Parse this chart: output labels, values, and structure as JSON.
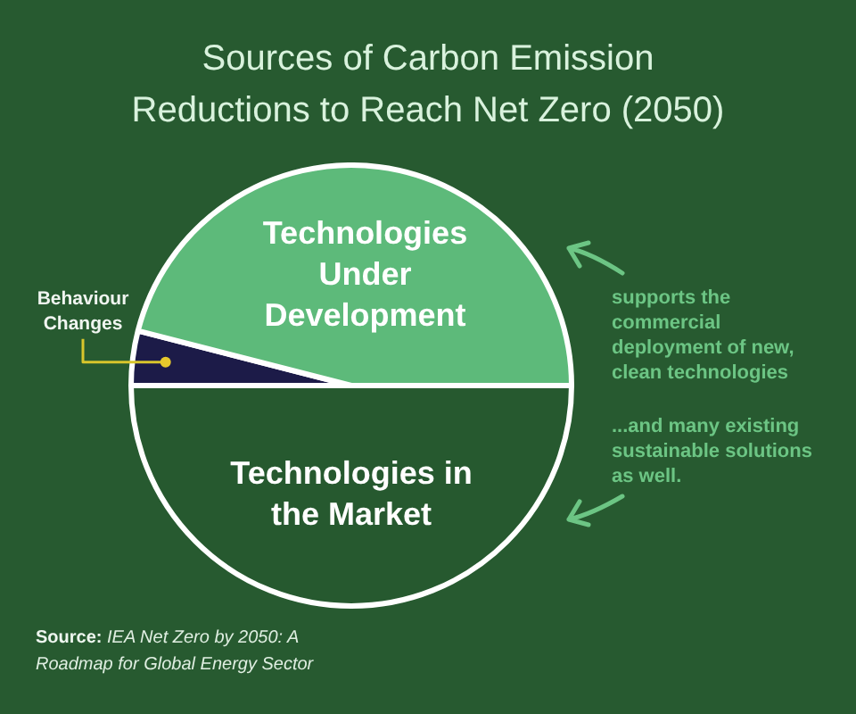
{
  "chart_data": {
    "type": "pie",
    "title": "Sources of Carbon Emission Reductions to Reach Net Zero (2050)",
    "categories": [
      "Technologies in the Market",
      "Behaviour Changes",
      "Technologies Under Development"
    ],
    "values": [
      50,
      4,
      46
    ],
    "colors": [
      "#26592f",
      "#1c1b48",
      "#5dba7a"
    ],
    "annotations": [
      "supports the commercial deployment of new, clean technologies",
      "...and many existing sustainable solutions as well.",
      "Source: IEA Net Zero by 2050: A Roadmap for Global Energy Sector"
    ],
    "legend": false
  }
}
